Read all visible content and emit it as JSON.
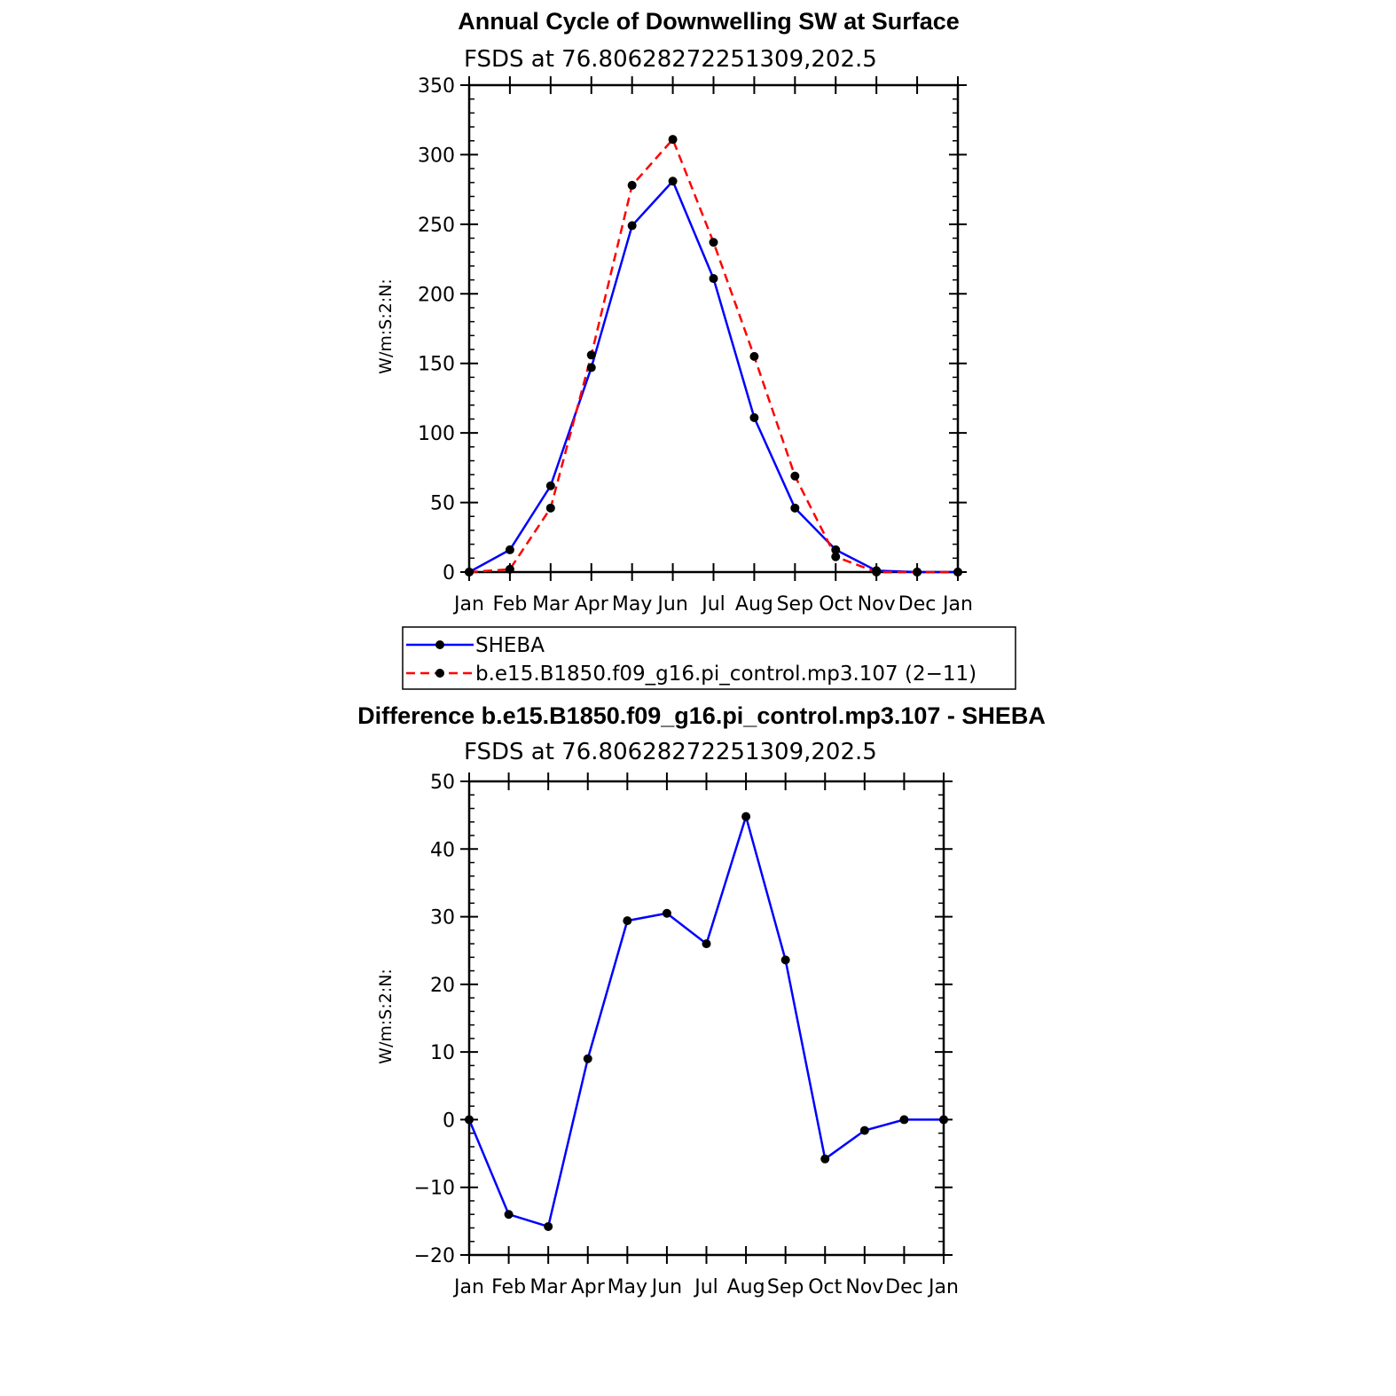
{
  "colors": {
    "sheba": "#0000ff",
    "model": "#ff0000",
    "marker": "#000000",
    "difference": "#0000ff"
  },
  "chart_data": [
    {
      "type": "line",
      "title": "Annual Cycle of Downwelling SW at Surface",
      "subtitle": "FSDS at 76.80628272251309,202.5",
      "xlabel": "",
      "ylabel": "W/m:S:2:N:",
      "categories": [
        "Jan",
        "Feb",
        "Mar",
        "Apr",
        "May",
        "Jun",
        "Jul",
        "Aug",
        "Sep",
        "Oct",
        "Nov",
        "Dec",
        "Jan"
      ],
      "ylim": [
        0,
        350
      ],
      "yticks": [
        0,
        50,
        100,
        150,
        200,
        250,
        300,
        350
      ],
      "series": [
        {
          "name": "SHEBA",
          "style": "solid",
          "values": [
            0,
            16,
            62,
            147,
            249,
            281,
            211,
            111,
            46,
            16,
            1,
            0,
            0
          ]
        },
        {
          "name": "b.e15.B1850.f09_g16.pi_control.mp3.107 (2−11)",
          "style": "dashed",
          "values": [
            0,
            2,
            46,
            156,
            278,
            311,
            237,
            155,
            69,
            11,
            0,
            0,
            0
          ]
        }
      ],
      "legend_position": "bottom"
    },
    {
      "type": "line",
      "title": "Difference b.e15.B1850.f09_g16.pi_control.mp3.107 - SHEBA",
      "subtitle": "FSDS at 76.80628272251309,202.5",
      "xlabel": "",
      "ylabel": "W/m:S:2:N:",
      "categories": [
        "Jan",
        "Feb",
        "Mar",
        "Apr",
        "May",
        "Jun",
        "Jul",
        "Aug",
        "Sep",
        "Oct",
        "Nov",
        "Dec",
        "Jan"
      ],
      "ylim": [
        -20,
        50
      ],
      "yticks": [
        -20,
        -10,
        0,
        10,
        20,
        30,
        40,
        50
      ],
      "series": [
        {
          "style": "solid",
          "values": [
            0,
            -14,
            -15.8,
            9,
            29.4,
            30.5,
            26,
            44.8,
            23.6,
            -5.8,
            -1.6,
            0,
            0
          ]
        }
      ]
    }
  ]
}
